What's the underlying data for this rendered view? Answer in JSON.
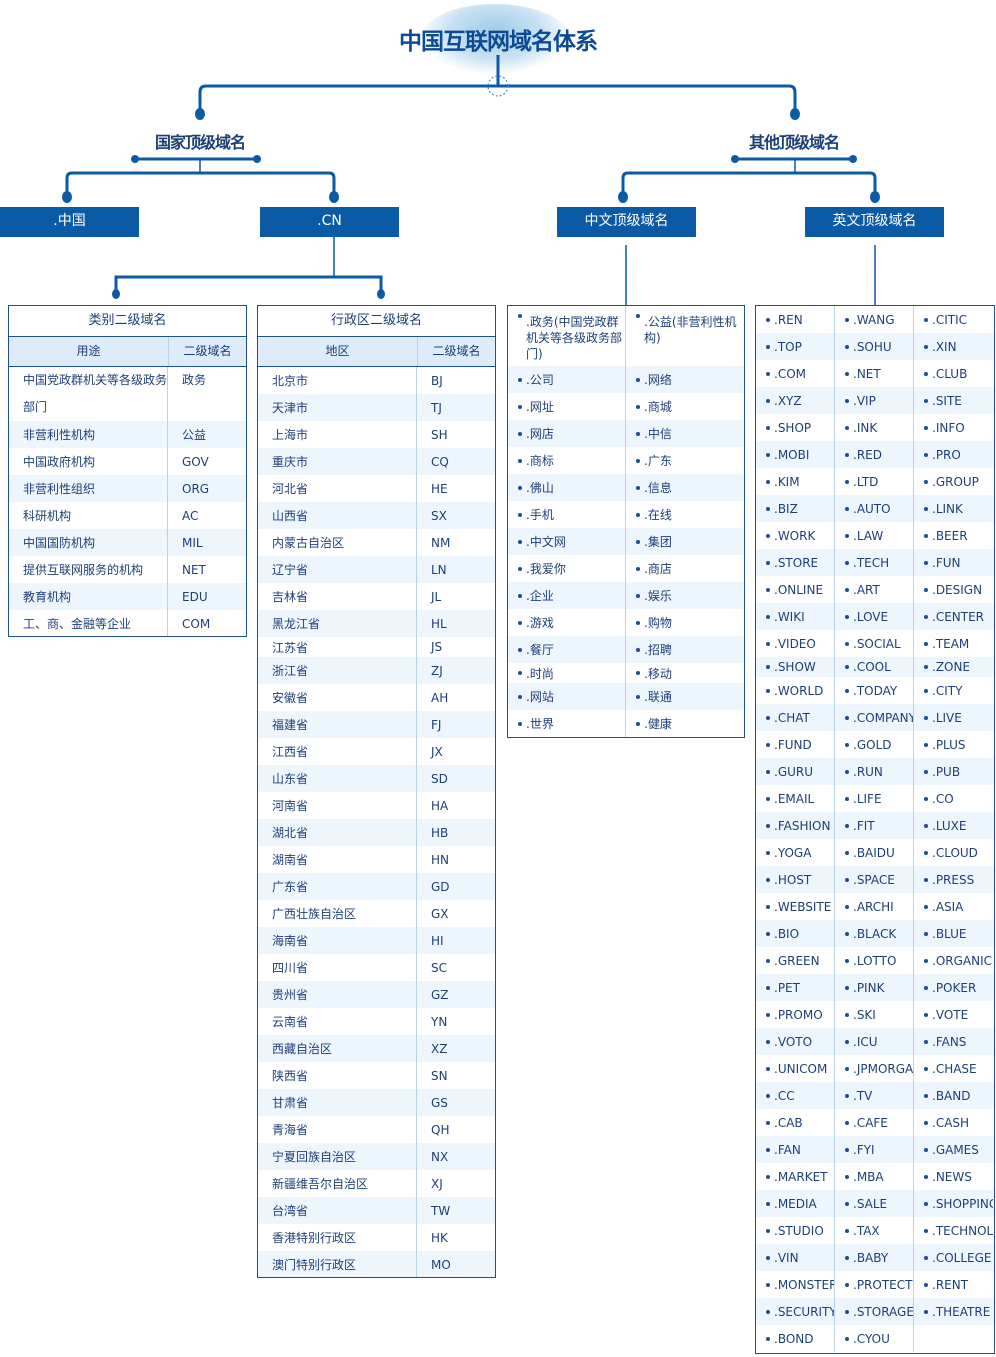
{
  "title": "中国互联网域名体系",
  "levels": {
    "national": "国家顶级域名",
    "other": "其他顶级域名"
  },
  "nodes": {
    "zhongguo": ".中国",
    "cn": ".CN",
    "chinese_tld": "中文顶级域名",
    "english_tld": "英文顶级域名"
  },
  "category_table": {
    "title": "类别二级域名",
    "headers": [
      "用途",
      "二级域名"
    ],
    "rows": [
      [
        "中国党政群机关等各级政务部门",
        "政务"
      ],
      [
        "非营利性机构",
        "公益"
      ],
      [
        "中国政府机构",
        "GOV"
      ],
      [
        "非营利性组织",
        "ORG"
      ],
      [
        "科研机构",
        "AC"
      ],
      [
        "中国国防机构",
        "MIL"
      ],
      [
        "提供互联网服务的机构",
        "NET"
      ],
      [
        "教育机构",
        "EDU"
      ],
      [
        "工、商、金融等企业",
        "COM"
      ]
    ]
  },
  "region_table": {
    "title": "行政区二级域名",
    "headers": [
      "地区",
      "二级域名"
    ],
    "rows": [
      [
        "北京市",
        "BJ"
      ],
      [
        "天津市",
        "TJ"
      ],
      [
        "上海市",
        "SH"
      ],
      [
        "重庆市",
        "CQ"
      ],
      [
        "河北省",
        "HE"
      ],
      [
        "山西省",
        "SX"
      ],
      [
        "内蒙古自治区",
        "NM"
      ],
      [
        "辽宁省",
        "LN"
      ],
      [
        "吉林省",
        "JL"
      ],
      [
        "黑龙江省",
        "HL"
      ],
      [
        "江苏省",
        "JS"
      ],
      [
        "浙江省",
        "ZJ"
      ],
      [
        "安徽省",
        "AH"
      ],
      [
        "福建省",
        "FJ"
      ],
      [
        "江西省",
        "JX"
      ],
      [
        "山东省",
        "SD"
      ],
      [
        "河南省",
        "HA"
      ],
      [
        "湖北省",
        "HB"
      ],
      [
        "湖南省",
        "HN"
      ],
      [
        "广东省",
        "GD"
      ],
      [
        "广西壮族自治区",
        "GX"
      ],
      [
        "海南省",
        "HI"
      ],
      [
        "四川省",
        "SC"
      ],
      [
        "贵州省",
        "GZ"
      ],
      [
        "云南省",
        "YN"
      ],
      [
        "西藏自治区",
        "XZ"
      ],
      [
        "陕西省",
        "SN"
      ],
      [
        "甘肃省",
        "GS"
      ],
      [
        "青海省",
        "QH"
      ],
      [
        "宁夏回族自治区",
        "NX"
      ],
      [
        "新疆维吾尔自治区",
        "XJ"
      ],
      [
        "台湾省",
        "TW"
      ],
      [
        "香港特别行政区",
        "HK"
      ],
      [
        "澳门特别行政区",
        "MO"
      ]
    ]
  },
  "chinese_list": {
    "rows": [
      [
        ".政务(中国党政群机关等各级政务部门)",
        ".公益(非营利性机构)"
      ],
      [
        ".公司",
        ".网络"
      ],
      [
        ".网址",
        ".商城"
      ],
      [
        ".网店",
        ".中信"
      ],
      [
        ".商标",
        ".广东"
      ],
      [
        ".佛山",
        ".信息"
      ],
      [
        ".手机",
        ".在线"
      ],
      [
        ".中文网",
        ".集团"
      ],
      [
        ".我爱你",
        ".商店"
      ],
      [
        ".企业",
        ".娱乐"
      ],
      [
        ".游戏",
        ".购物"
      ],
      [
        ".餐厅",
        ".招聘"
      ],
      [
        ".时尚",
        ".移动"
      ],
      [
        ".网站",
        ".联通"
      ],
      [
        ".世界",
        ".健康"
      ]
    ]
  },
  "english_list": {
    "rows": [
      [
        ".REN",
        ".WANG",
        ".CITIC"
      ],
      [
        ".TOP",
        ".SOHU",
        ".XIN"
      ],
      [
        ".COM",
        ".NET",
        ".CLUB"
      ],
      [
        ".XYZ",
        ".VIP",
        ".SITE"
      ],
      [
        ".SHOP",
        ".INK",
        ".INFO"
      ],
      [
        ".MOBI",
        ".RED",
        ".PRO"
      ],
      [
        ".KIM",
        ".LTD",
        ".GROUP"
      ],
      [
        ".BIZ",
        ".AUTO",
        ".LINK"
      ],
      [
        ".WORK",
        ".LAW",
        ".BEER"
      ],
      [
        ".STORE",
        ".TECH",
        ".FUN"
      ],
      [
        ".ONLINE",
        ".ART",
        ".DESIGN"
      ],
      [
        ".WIKI",
        ".LOVE",
        ".CENTER"
      ],
      [
        ".VIDEO",
        ".SOCIAL",
        ".TEAM"
      ],
      [
        ".SHOW",
        ".COOL",
        ".ZONE"
      ],
      [
        ".WORLD",
        ".TODAY",
        ".CITY"
      ],
      [
        ".CHAT",
        ".COMPANY",
        ".LIVE"
      ],
      [
        ".FUND",
        ".GOLD",
        ".PLUS"
      ],
      [
        ".GURU",
        ".RUN",
        ".PUB"
      ],
      [
        ".EMAIL",
        ".LIFE",
        ".CO"
      ],
      [
        ".FASHION",
        ".FIT",
        ".LUXE"
      ],
      [
        ".YOGA",
        ".BAIDU",
        ".CLOUD"
      ],
      [
        ".HOST",
        ".SPACE",
        ".PRESS"
      ],
      [
        ".WEBSITE",
        ".ARCHI",
        ".ASIA"
      ],
      [
        ".BIO",
        ".BLACK",
        ".BLUE"
      ],
      [
        ".GREEN",
        ".LOTTO",
        ".ORGANIC"
      ],
      [
        ".PET",
        ".PINK",
        ".POKER"
      ],
      [
        ".PROMO",
        ".SKI",
        ".VOTE"
      ],
      [
        ".VOTO",
        ".ICU",
        ".FANS"
      ],
      [
        ".UNICOM",
        ".JPMORGAN",
        ".CHASE"
      ],
      [
        ".CC",
        ".TV",
        ".BAND"
      ],
      [
        ".CAB",
        ".CAFE",
        ".CASH"
      ],
      [
        ".FAN",
        ".FYI",
        ".GAMES"
      ],
      [
        ".MARKET",
        ".MBA",
        ".NEWS"
      ],
      [
        ".MEDIA",
        ".SALE",
        ".SHOPPING"
      ],
      [
        ".STUDIO",
        ".TAX",
        ".TECHNOLOGY"
      ],
      [
        ".VIN",
        ".BABY",
        ".COLLEGE"
      ],
      [
        ".MONSTER",
        ".PROTECTION",
        ".RENT"
      ],
      [
        ".SECURITY",
        ".STORAGE",
        ".THEATRE"
      ],
      [
        ".BOND",
        ".CYOU",
        ""
      ]
    ]
  },
  "colors": {
    "primary": "#0b5aa6",
    "border": "#1e4f92",
    "header_bg": "#dcecfb",
    "row_alt": "#eef6fd",
    "text": "#1d3f78"
  }
}
